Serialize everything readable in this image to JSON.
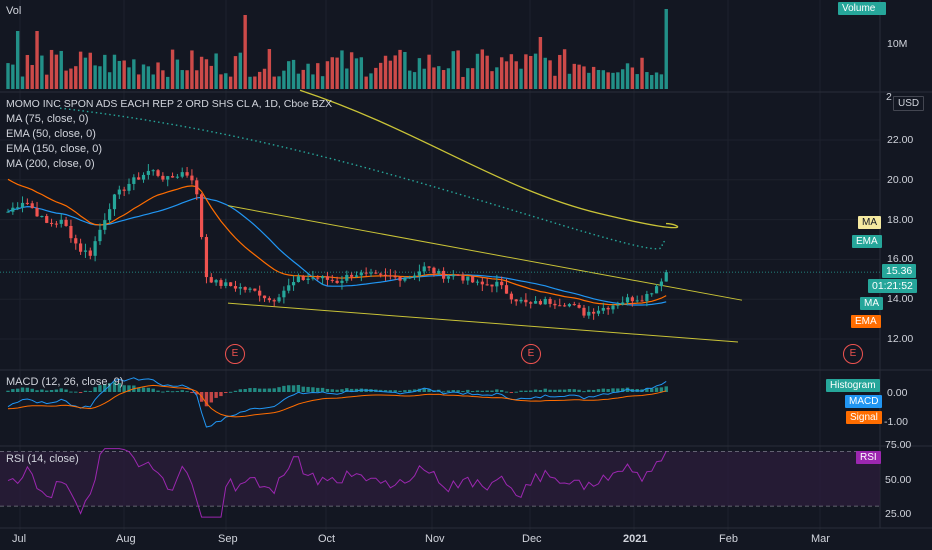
{
  "chart_data": [
    {
      "type": "bar",
      "pane": "volume",
      "title": "Vol",
      "legend": [
        "Volume"
      ],
      "ytick_labels": [
        "10M"
      ],
      "colors": {
        "up": "#26a69a",
        "down": "#ef5350",
        "legend_bg": "#26a69a"
      }
    },
    {
      "type": "candlestick",
      "pane": "price",
      "title": "MOMO INC SPON ADS EACH REP 2 ORD SHS CL A, 1D, Cboe BZX",
      "indicators": [
        "MA (75, close, 0)",
        "EMA (50, close, 0)",
        "EMA (150, close, 0)",
        "MA (200, close, 0)"
      ],
      "currency": "USD",
      "yticks": [
        12.0,
        14.0,
        16.0,
        18.0,
        20.0,
        22.0
      ],
      "ytick_labels": [
        "12.00",
        "14.00",
        "16.00",
        "18.00",
        "20.00",
        "22.00"
      ],
      "top_partial_label": "2",
      "xtick_labels": [
        "Jul",
        "Aug",
        "Sep",
        "Oct",
        "Nov",
        "Dec",
        "2021",
        "Feb",
        "Mar"
      ],
      "last_price": "15.36",
      "countdown": "01:21:52",
      "earnings_marker": "E",
      "tags": {
        "ma_top": "MA",
        "ema_top": "EMA",
        "ma_low": "MA",
        "ema_low": "EMA"
      },
      "approx_path": [
        {
          "date": "Jul",
          "close": 18.4
        },
        {
          "date": "Aug",
          "close": 19.7
        },
        {
          "date": "Sep",
          "close": 15.0
        },
        {
          "date": "Oct",
          "close": 14.7
        },
        {
          "date": "Nov",
          "close": 15.5
        },
        {
          "date": "Dec",
          "close": 13.6
        },
        {
          "date": "2021",
          "close": 14.0
        },
        {
          "date": "last",
          "close": 15.36
        }
      ],
      "colors": {
        "up": "#26a69a",
        "down": "#ef5350",
        "ma75": "#2196f3",
        "ema50": "#ff6d00",
        "ema150": "#26a69a",
        "ma200": "#c9c337",
        "trendline": "#c9c337",
        "last_price_bg": "#26a69a"
      }
    },
    {
      "type": "histogram",
      "pane": "macd",
      "title": "MACD (12, 26, close, 9)",
      "legend": [
        "Histogram",
        "MACD",
        "Signal"
      ],
      "ytick_labels": [
        "0.00",
        "-1.00"
      ],
      "colors": {
        "hist_up": "#26a69a",
        "hist_down": "#ef5350",
        "macd": "#2196f3",
        "signal": "#ff6d00"
      }
    },
    {
      "type": "line",
      "pane": "rsi",
      "title": "RSI (14, close)",
      "legend": [
        "RSI"
      ],
      "ytick_labels": [
        "75.00",
        "50.00",
        "25.00"
      ],
      "bands": [
        30,
        70
      ],
      "colors": {
        "rsi": "#9c27b0",
        "band_fill": "#2a1d3a"
      }
    }
  ]
}
